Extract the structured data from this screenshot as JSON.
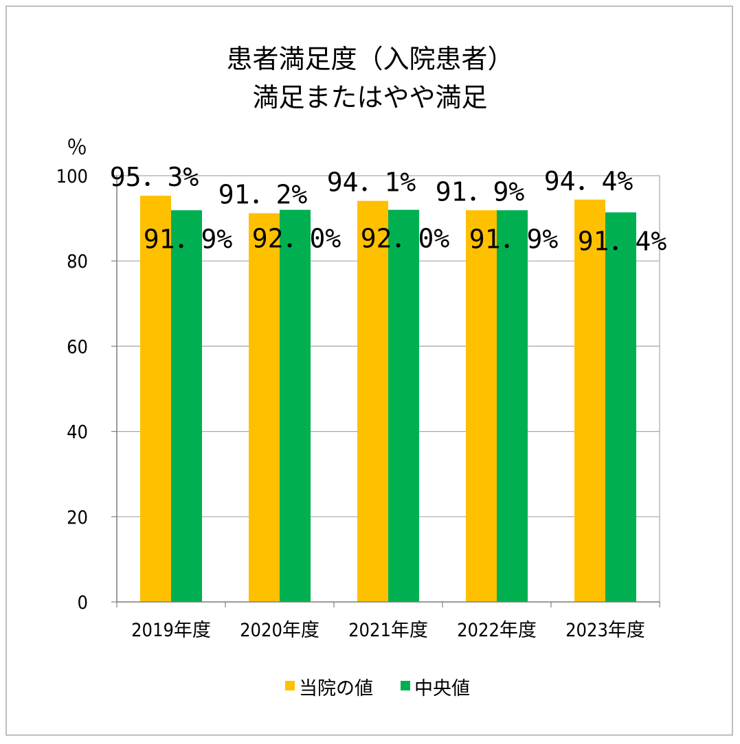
{
  "chart_data": {
    "type": "bar",
    "title": "患者満足度（入院患者）",
    "subtitle": "満足またはやや満足",
    "ylabel": "％",
    "ylim": [
      0,
      100
    ],
    "yticks": [
      "0",
      "20",
      "40",
      "60",
      "80",
      "100"
    ],
    "categories": [
      "2019年度",
      "2020年度",
      "2021年度",
      "2022年度",
      "2023年度"
    ],
    "series": [
      {
        "name": "当院の値",
        "color": "#FFC000",
        "values": [
          95.3,
          91.2,
          94.1,
          91.9,
          94.4
        ],
        "labels": [
          "95．3%",
          "91．2%",
          "94．1%",
          "91．9%",
          "94．4%"
        ]
      },
      {
        "name": "中央値",
        "color": "#00B050",
        "values": [
          91.9,
          92.0,
          92.0,
          91.9,
          91.4
        ],
        "labels": [
          "91．9%",
          "92．0%",
          "92．0%",
          "91．9%",
          "91．4%"
        ]
      }
    ],
    "grid": true,
    "legend_position": "bottom"
  }
}
